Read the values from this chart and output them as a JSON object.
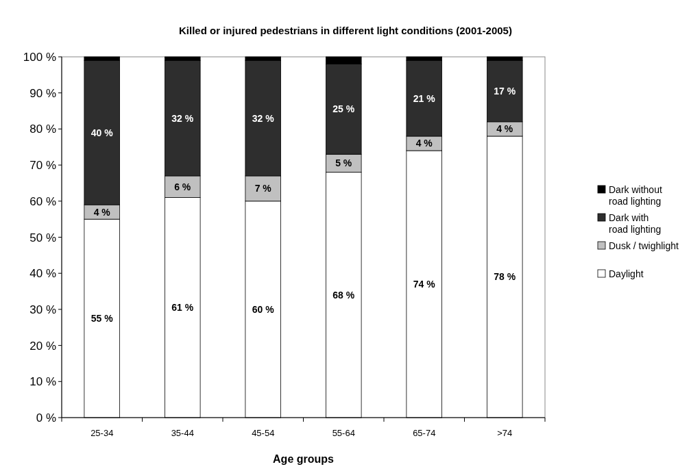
{
  "chart_data": {
    "type": "bar",
    "stacked": true,
    "title": "Killed or injured pedestrians in different light conditions (2001-2005)",
    "xlabel": "Age groups",
    "categories": [
      "25-34",
      "35-44",
      "45-54",
      "55-64",
      "65-74",
      ">74"
    ],
    "series": [
      {
        "name": "Daylight",
        "color": "#ffffff",
        "values": [
          55,
          61,
          60,
          68,
          74,
          78
        ],
        "value_labels": [
          "55 %",
          "61 %",
          "60 %",
          "68 %",
          "74 %",
          "78 %"
        ]
      },
      {
        "name": "Dusk / twighlight",
        "color": "#c0c0c0",
        "values": [
          4,
          6,
          7,
          5,
          4,
          4
        ],
        "value_labels": [
          "4 %",
          "6 %",
          "7 %",
          "5 %",
          "4 %",
          "4 %"
        ]
      },
      {
        "name": "Dark with road lighting",
        "color": "#2e2e2e",
        "values": [
          40,
          32,
          32,
          25,
          21,
          17
        ],
        "value_labels": [
          "40 %",
          "32 %",
          "32 %",
          "25 %",
          "21 %",
          "17 %"
        ]
      },
      {
        "name": "Dark without road lighting",
        "color": "#000000",
        "values": [
          1,
          1,
          1,
          2,
          1,
          1
        ]
      }
    ],
    "ylim": [
      0,
      100
    ],
    "yticks": [
      {
        "value": 0,
        "label": "0 %"
      },
      {
        "value": 10,
        "label": "10 %"
      },
      {
        "value": 20,
        "label": "20 %"
      },
      {
        "value": 30,
        "label": "30 %"
      },
      {
        "value": 40,
        "label": "40 %"
      },
      {
        "value": 50,
        "label": "50 %"
      },
      {
        "value": 60,
        "label": "60 %"
      },
      {
        "value": 70,
        "label": "70 %"
      },
      {
        "value": 80,
        "label": "80 %"
      },
      {
        "value": 90,
        "label": "90 %"
      },
      {
        "value": 100,
        "label": "100 %"
      }
    ],
    "legend": "right",
    "grid": false
  }
}
